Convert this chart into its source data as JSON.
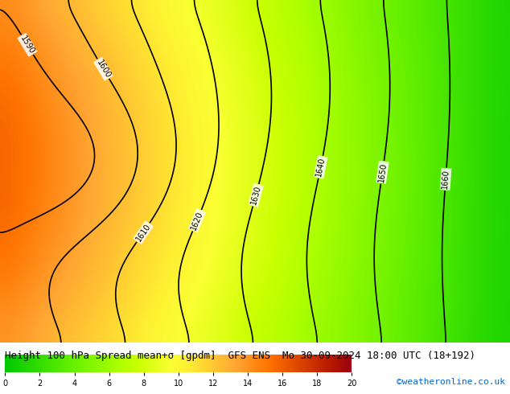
{
  "title": "Height 100 hPa Spread mean+σ [gpdm]  GFS ENS  Mo 30-09-2024 18:00 UTC (18+192)",
  "colorbar_label": "",
  "cmap_colors": [
    "#00c800",
    "#19d200",
    "#32dc00",
    "#4be600",
    "#64f000",
    "#7df500",
    "#96fa00",
    "#afff00",
    "#c8ff00",
    "#e1ff19",
    "#faff32",
    "#fff032",
    "#ffd732",
    "#ffbe32",
    "#ffa532",
    "#ff8c19",
    "#ff7300",
    "#eb5a00",
    "#d74100",
    "#c32800",
    "#af1400",
    "#9b0014"
  ],
  "vmin": 0,
  "vmax": 20,
  "colorbar_ticks": [
    0,
    2,
    4,
    6,
    8,
    10,
    12,
    14,
    16,
    18,
    20
  ],
  "contour_color": "black",
  "contour_linewidth": 1.2,
  "background_map_color": "#c8c8c8",
  "text_color": "#000000",
  "credit_text": "©weatheronline.co.uk",
  "credit_color": "#0066cc",
  "title_fontsize": 9,
  "credit_fontsize": 8
}
